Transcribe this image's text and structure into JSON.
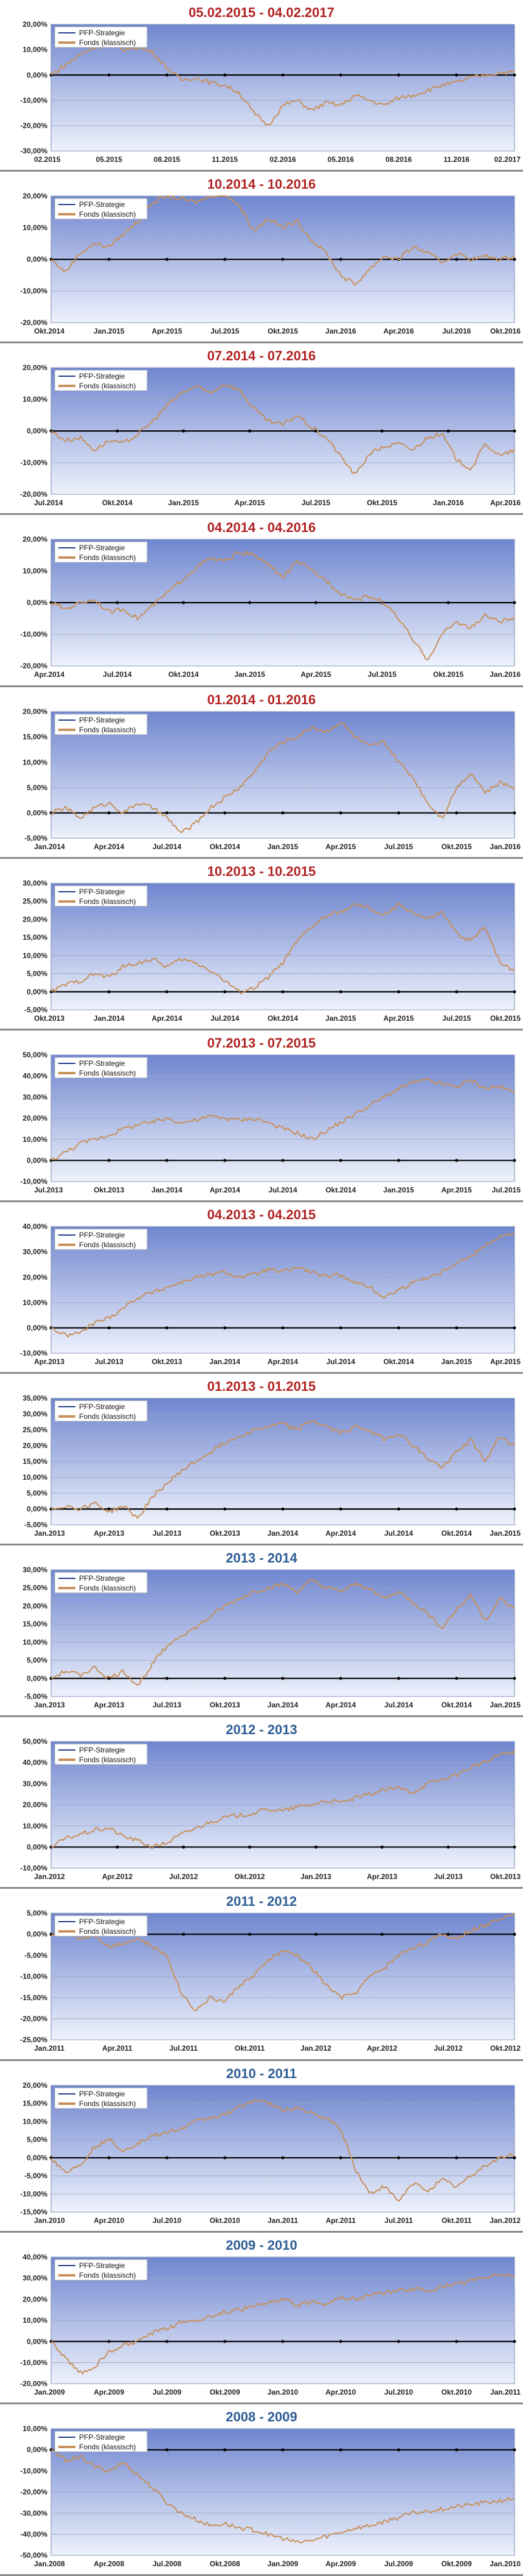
{
  "colors": {
    "title_red": "#b22222",
    "title_blue": "#2e5d96",
    "plot_top": "#6f86cf",
    "plot_bottom": "#eef2fc",
    "grid": "#9aa6c6",
    "zero_line": "#000000",
    "fund_line": "#c8905a",
    "strategy_line": "#1f3d8a"
  },
  "chart_data": [
    {
      "type": "line",
      "title": "05.02.2015 - 04.02.2017",
      "title_color": "red",
      "ylim": [
        -30,
        20
      ],
      "yticks": [
        "20,00%",
        "10,00%",
        "0,00%",
        "-10,00%",
        "-20,00%",
        "-30,00%"
      ],
      "xticks": [
        "02.2015",
        "05.2015",
        "08.2015",
        "11.2015",
        "02.2016",
        "05.2016",
        "08.2016",
        "11.2016",
        "02.2017"
      ],
      "series": [
        {
          "name": "PFP-Strategie",
          "values": []
        },
        {
          "name": "Fonds (klassisch)",
          "values": [
            0,
            4,
            8,
            11,
            12,
            10,
            11,
            9,
            3,
            -2,
            -1,
            -3,
            -4,
            -7,
            -15,
            -20,
            -12,
            -10,
            -14,
            -11,
            -12,
            -8,
            -10,
            -12,
            -9,
            -8,
            -6,
            -4,
            -3,
            -1,
            0,
            1,
            1
          ]
        }
      ]
    },
    {
      "type": "line",
      "title": "10.2014 - 10.2016",
      "title_color": "red",
      "ylim": [
        -20,
        20
      ],
      "yticks": [
        "20,00%",
        "10,00%",
        "0,00%",
        "-10,00%",
        "-20,00%"
      ],
      "xticks": [
        "Okt.2014",
        "Jan.2015",
        "Apr.2015",
        "Jul.2015",
        "Okt.2015",
        "Jan.2016",
        "Apr.2016",
        "Jul.2016",
        "Okt.2016"
      ],
      "series": [
        {
          "name": "PFP-Strategie",
          "values": []
        },
        {
          "name": "Fonds (klassisch)",
          "values": [
            0,
            -4,
            2,
            5,
            4,
            8,
            12,
            18,
            20,
            19,
            18,
            20,
            21,
            17,
            9,
            13,
            10,
            12,
            6,
            2,
            -5,
            -8,
            -3,
            1,
            0,
            4,
            2,
            -1,
            2,
            0,
            1,
            0,
            1
          ]
        }
      ]
    },
    {
      "type": "line",
      "title": "07.2014 - 07.2016",
      "title_color": "red",
      "ylim": [
        -20,
        20
      ],
      "yticks": [
        "20,00%",
        "10,00%",
        "0,00%",
        "-10,00%",
        "-20,00%"
      ],
      "xticks": [
        "Jul.2014",
        "Okt.2014",
        "Jan.2015",
        "Apr.2015",
        "Jul.2015",
        "Okt.2015",
        "Jan.2016",
        "Apr.2016"
      ],
      "series": [
        {
          "name": "PFP-Strategie",
          "values": []
        },
        {
          "name": "Fonds (klassisch)",
          "values": [
            0,
            -3,
            -2,
            -6,
            -3,
            -4,
            -1,
            3,
            8,
            12,
            14,
            12,
            15,
            13,
            7,
            3,
            2,
            5,
            1,
            -2,
            -8,
            -14,
            -7,
            -5,
            -4,
            -6,
            -2,
            -1,
            -9,
            -12,
            -4,
            -8,
            -6
          ]
        }
      ]
    },
    {
      "type": "line",
      "title": "04.2014 - 04.2016",
      "title_color": "red",
      "ylim": [
        -20,
        20
      ],
      "yticks": [
        "20,00%",
        "10,00%",
        "0,00%",
        "-10,00%",
        "-20,00%"
      ],
      "xticks": [
        "Apr.2014",
        "Jul.2014",
        "Okt.2014",
        "Jan.2015",
        "Apr.2015",
        "Jul.2015",
        "Okt.2015",
        "Jan.2016"
      ],
      "series": [
        {
          "name": "PFP-Strategie",
          "values": []
        },
        {
          "name": "Fonds (klassisch)",
          "values": [
            0,
            -2,
            0,
            1,
            -3,
            -2,
            -5,
            -1,
            3,
            7,
            11,
            14,
            13,
            16,
            15,
            12,
            8,
            13,
            10,
            7,
            3,
            1,
            2,
            0,
            -5,
            -12,
            -18,
            -10,
            -6,
            -8,
            -4,
            -6,
            -5
          ]
        }
      ]
    },
    {
      "type": "line",
      "title": "01.2014 - 01.2016",
      "title_color": "red",
      "ylim": [
        -5,
        20
      ],
      "yticks": [
        "20,00%",
        "15,00%",
        "10,00%",
        "5,00%",
        "0,00%",
        "-5,00%"
      ],
      "xticks": [
        "Jan.2014",
        "Apr.2014",
        "Jul.2014",
        "Okt.2014",
        "Jan.2015",
        "Apr.2015",
        "Jul.2015",
        "Okt.2015",
        "Jan.2016"
      ],
      "series": [
        {
          "name": "PFP-Strategie",
          "values": []
        },
        {
          "name": "Fonds (klassisch)",
          "values": [
            0,
            1,
            -1,
            1,
            2,
            0,
            2,
            1,
            -1,
            -4,
            -2,
            1,
            3,
            5,
            8,
            12,
            14,
            15,
            17,
            16,
            18,
            15,
            13,
            14,
            10,
            7,
            2,
            -1,
            5,
            8,
            4,
            6,
            5
          ]
        }
      ]
    },
    {
      "type": "line",
      "title": "10.2013 - 10.2015",
      "title_color": "red",
      "ylim": [
        -5,
        30
      ],
      "yticks": [
        "30,00%",
        "25,00%",
        "20,00%",
        "15,00%",
        "10,00%",
        "5,00%",
        "0,00%",
        "-5,00%"
      ],
      "xticks": [
        "Okt.2013",
        "Jan.2014",
        "Apr.2014",
        "Jul.2014",
        "Okt.2014",
        "Jan.2015",
        "Apr.2015",
        "Jul.2015",
        "Okt.2015"
      ],
      "series": [
        {
          "name": "PFP-Strategie",
          "values": []
        },
        {
          "name": "Fonds (klassisch)",
          "values": [
            0,
            2,
            3,
            5,
            4,
            7,
            8,
            9,
            7,
            9,
            8,
            6,
            3,
            0,
            1,
            4,
            8,
            14,
            18,
            21,
            22,
            24,
            23,
            21,
            24,
            22,
            20,
            22,
            16,
            14,
            18,
            8,
            6
          ]
        }
      ]
    },
    {
      "type": "line",
      "title": "07.2013 - 07.2015",
      "title_color": "red",
      "ylim": [
        -10,
        50
      ],
      "yticks": [
        "50,00%",
        "40,00%",
        "30,00%",
        "20,00%",
        "10,00%",
        "0,00%",
        "-10,00%"
      ],
      "xticks": [
        "Jul.2013",
        "Okt.2013",
        "Jan.2014",
        "Apr.2014",
        "Jul.2014",
        "Okt.2014",
        "Jan.2015",
        "Apr.2015",
        "Jul.2015"
      ],
      "series": [
        {
          "name": "PFP-Strategie",
          "values": []
        },
        {
          "name": "Fonds (klassisch)",
          "values": [
            0,
            4,
            8,
            10,
            12,
            15,
            17,
            18,
            20,
            18,
            19,
            21,
            20,
            19,
            20,
            18,
            15,
            13,
            10,
            14,
            18,
            22,
            26,
            30,
            34,
            37,
            38,
            36,
            35,
            38,
            34,
            35,
            32
          ]
        }
      ]
    },
    {
      "type": "line",
      "title": "04.2013 - 04.2015",
      "title_color": "red",
      "ylim": [
        -10,
        40
      ],
      "yticks": [
        "40,00%",
        "30,00%",
        "20,00%",
        "10,00%",
        "0,00%",
        "-10,00%"
      ],
      "xticks": [
        "Apr.2013",
        "Jul.2013",
        "Okt.2013",
        "Jan.2014",
        "Apr.2014",
        "Jul.2014",
        "Okt.2014",
        "Jan.2015",
        "Apr.2015"
      ],
      "series": [
        {
          "name": "PFP-Strategie",
          "values": []
        },
        {
          "name": "Fonds (klassisch)",
          "values": [
            0,
            -3,
            -2,
            2,
            4,
            8,
            12,
            14,
            16,
            18,
            20,
            21,
            22,
            20,
            21,
            23,
            22,
            24,
            22,
            20,
            21,
            18,
            16,
            12,
            15,
            18,
            20,
            22,
            26,
            28,
            33,
            36,
            37
          ]
        }
      ]
    },
    {
      "type": "line",
      "title": "01.2013 - 01.2015",
      "title_color": "red",
      "ylim": [
        -5,
        35
      ],
      "yticks": [
        "35,00%",
        "30,00%",
        "25,00%",
        "20,00%",
        "15,00%",
        "10,00%",
        "5,00%",
        "0,00%",
        "-5,00%"
      ],
      "xticks": [
        "Jan.2013",
        "Apr.2013",
        "Jul.2013",
        "Okt.2013",
        "Jan.2014",
        "Apr.2014",
        "Jul.2014",
        "Okt.2014",
        "Jan.2015"
      ],
      "series": [
        {
          "name": "PFP-Strategie",
          "values": []
        },
        {
          "name": "Fonds (klassisch)",
          "values": [
            0,
            1,
            0,
            2,
            -1,
            1,
            -3,
            4,
            8,
            12,
            15,
            18,
            21,
            23,
            25,
            26,
            27,
            25,
            28,
            26,
            24,
            26,
            25,
            22,
            24,
            20,
            16,
            13,
            18,
            22,
            15,
            23,
            20
          ]
        }
      ]
    },
    {
      "type": "line",
      "title": "2013 - 2014",
      "title_color": "blue",
      "ylim": [
        -5,
        30
      ],
      "yticks": [
        "30,00%",
        "25,00%",
        "20,00%",
        "15,00%",
        "10,00%",
        "5,00%",
        "0,00%",
        "-5,00%"
      ],
      "xticks": [
        "Jan.2013",
        "Apr.2013",
        "Jul.2013",
        "Okt.2013",
        "Jan.2014",
        "Apr.2014",
        "Jul.2014",
        "Okt.2014",
        "Jan.2015"
      ],
      "series": [
        {
          "name": "PFP-Strategie",
          "values": []
        },
        {
          "name": "Fonds (klassisch)",
          "values": [
            0,
            2,
            1,
            3,
            0,
            2,
            -2,
            4,
            9,
            12,
            14,
            17,
            20,
            22,
            24,
            25,
            26,
            24,
            27,
            25,
            24,
            26,
            25,
            22,
            24,
            21,
            18,
            14,
            19,
            23,
            16,
            22,
            19
          ]
        }
      ]
    },
    {
      "type": "line",
      "title": "2012 - 2013",
      "title_color": "blue",
      "ylim": [
        -10,
        50
      ],
      "yticks": [
        "50,00%",
        "40,00%",
        "30,00%",
        "20,00%",
        "10,00%",
        "0,00%",
        "-10,00%"
      ],
      "xticks": [
        "Jan.2012",
        "Apr.2012",
        "Jul.2012",
        "Okt.2012",
        "Jan.2013",
        "Apr.2013",
        "Jul.2013",
        "Okt.2013"
      ],
      "series": [
        {
          "name": "PFP-Strategie",
          "values": []
        },
        {
          "name": "Fonds (klassisch)",
          "values": [
            0,
            4,
            6,
            8,
            9,
            5,
            3,
            0,
            2,
            6,
            9,
            12,
            14,
            15,
            16,
            18,
            17,
            19,
            20,
            22,
            21,
            23,
            25,
            27,
            28,
            26,
            30,
            32,
            34,
            38,
            40,
            44,
            45
          ]
        }
      ]
    },
    {
      "type": "line",
      "title": "2011 - 2012",
      "title_color": "blue",
      "ylim": [
        -25,
        5
      ],
      "yticks": [
        "5,00%",
        "0,00%",
        "-5,00%",
        "-10,00%",
        "-15,00%",
        "-20,00%",
        "-25,00%"
      ],
      "xticks": [
        "Jan.2011",
        "Apr.2011",
        "Jul.2011",
        "Okt.2011",
        "Jan.2012",
        "Apr.2012",
        "Jul.2012",
        "Okt.2012"
      ],
      "series": [
        {
          "name": "PFP-Strategie",
          "values": []
        },
        {
          "name": "Fonds (klassisch)",
          "values": [
            0,
            1,
            -1,
            0,
            -3,
            -2,
            -1,
            -3,
            -5,
            -14,
            -18,
            -15,
            -16,
            -12,
            -10,
            -6,
            -4,
            -5,
            -8,
            -12,
            -15,
            -14,
            -10,
            -8,
            -5,
            -3,
            -2,
            0,
            -1,
            1,
            2,
            4,
            5
          ]
        }
      ]
    },
    {
      "type": "line",
      "title": "2010 - 2011",
      "title_color": "blue",
      "ylim": [
        -15,
        20
      ],
      "yticks": [
        "20,00%",
        "15,00%",
        "10,00%",
        "5,00%",
        "0,00%",
        "-5,00%",
        "-10,00%",
        "-15,00%"
      ],
      "xticks": [
        "Jan.2010",
        "Apr.2010",
        "Jul.2010",
        "Okt.2010",
        "Jan.2011",
        "Apr.2011",
        "Jul.2011",
        "Okt.2011",
        "Jan.2012"
      ],
      "series": [
        {
          "name": "PFP-Strategie",
          "values": []
        },
        {
          "name": "Fonds (klassisch)",
          "values": [
            0,
            -4,
            -2,
            3,
            5,
            2,
            4,
            6,
            7,
            8,
            10,
            11,
            12,
            14,
            16,
            15,
            13,
            14,
            12,
            11,
            8,
            -3,
            -10,
            -8,
            -12,
            -7,
            -9,
            -6,
            -8,
            -5,
            -2,
            0,
            1
          ]
        }
      ]
    },
    {
      "type": "line",
      "title": "2009 - 2010",
      "title_color": "blue",
      "ylim": [
        -20,
        40
      ],
      "yticks": [
        "40,00%",
        "30,00%",
        "20,00%",
        "10,00%",
        "0,00%",
        "-10,00%",
        "-20,00%"
      ],
      "xticks": [
        "Jan.2009",
        "Apr.2009",
        "Jul.2009",
        "Okt.2009",
        "Jan.2010",
        "Apr.2010",
        "Jul.2010",
        "Okt.2010",
        "Jan.2011"
      ],
      "series": [
        {
          "name": "PFP-Strategie",
          "values": []
        },
        {
          "name": "Fonds (klassisch)",
          "values": [
            0,
            -8,
            -15,
            -12,
            -5,
            -2,
            0,
            4,
            6,
            9,
            10,
            12,
            14,
            15,
            17,
            18,
            20,
            17,
            19,
            18,
            21,
            20,
            22,
            23,
            24,
            25,
            24,
            26,
            27,
            29,
            30,
            32,
            31
          ]
        }
      ]
    },
    {
      "type": "line",
      "title": "2008 - 2009",
      "title_color": "blue",
      "ylim": [
        -50,
        10
      ],
      "yticks": [
        "10,00%",
        "0,00%",
        "-10,00%",
        "-20,00%",
        "-30,00%",
        "-40,00%",
        "-50,00%"
      ],
      "xticks": [
        "Jan.2008",
        "Apr.2008",
        "Jul.2008",
        "Okt.2008",
        "Jan.2009",
        "Apr.2009",
        "Jul.2009",
        "Okt.2009",
        "Jan.2010"
      ],
      "series": [
        {
          "name": "PFP-Strategie",
          "values": []
        },
        {
          "name": "Fonds (klassisch)",
          "values": [
            0,
            -5,
            -3,
            -8,
            -10,
            -6,
            -12,
            -18,
            -25,
            -30,
            -33,
            -36,
            -35,
            -37,
            -38,
            -40,
            -42,
            -44,
            -43,
            -41,
            -39,
            -37,
            -36,
            -34,
            -32,
            -30,
            -29,
            -28,
            -27,
            -26,
            -25,
            -24,
            -23
          ]
        }
      ]
    }
  ]
}
